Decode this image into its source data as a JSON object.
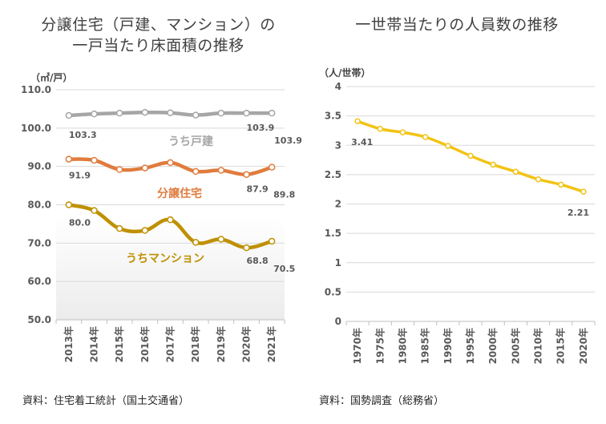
{
  "chart_data": [
    {
      "type": "line",
      "title": "分譲住宅（戸建、マンション）の一戸当たり床面積の推移",
      "title_lines": [
        "分譲住宅（戸建、マンション）の",
        "一戸当たり床面積の推移"
      ],
      "unit": "（㎡/戸）",
      "xlabel": "",
      "ylabel": "（㎡/戸）",
      "ylim": [
        50,
        110
      ],
      "y_ticks": [
        "110.0",
        "100.0",
        "90.0",
        "80.0",
        "70.0",
        "60.0",
        "50.0"
      ],
      "categories": [
        "2013年",
        "2014年",
        "2015年",
        "2016年",
        "2017年",
        "2018年",
        "2019年",
        "2020年",
        "2021年"
      ],
      "series": [
        {
          "name": "うち戸建",
          "color": "#a6a6a6",
          "values": [
            103.3,
            103.7,
            103.9,
            104.1,
            104.0,
            103.4,
            103.9,
            103.9,
            103.9
          ],
          "labels": [
            {
              "index": 0,
              "text": "103.3"
            },
            {
              "index": 7,
              "text": "103.9"
            },
            {
              "index": 8,
              "text": "103.9"
            }
          ]
        },
        {
          "name": "分譲住宅",
          "color": "#e07c3e",
          "values": [
            91.9,
            91.6,
            89.2,
            89.6,
            91.0,
            88.7,
            89.0,
            87.9,
            89.8
          ],
          "labels": [
            {
              "index": 0,
              "text": "91.9"
            },
            {
              "index": 7,
              "text": "87.9"
            },
            {
              "index": 8,
              "text": "89.8"
            }
          ]
        },
        {
          "name": "うちマンション",
          "color": "#bf9000",
          "values": [
            80.0,
            78.5,
            73.8,
            73.3,
            76.1,
            70.2,
            71.0,
            68.8,
            70.5
          ],
          "labels": [
            {
              "index": 0,
              "text": "80.0"
            },
            {
              "index": 7,
              "text": "68.8"
            },
            {
              "index": 8,
              "text": "70.5"
            }
          ]
        }
      ],
      "source": "資料：住宅着工統計（国土交通省）"
    },
    {
      "type": "line",
      "title": "一世帯当たりの人員数の推移",
      "title_lines": [
        "一世帯当たりの人員数の推移"
      ],
      "unit": "（人/世帯）",
      "xlabel": "",
      "ylabel": "（人/世帯）",
      "ylim": [
        0,
        4
      ],
      "y_ticks": [
        "4",
        "3.5",
        "3",
        "2.5",
        "2",
        "1.5",
        "1",
        "0.5",
        "0"
      ],
      "categories": [
        "1970年",
        "1975年",
        "1980年",
        "1985年",
        "1990年",
        "1995年",
        "2000年",
        "2005年",
        "2010年",
        "2015年",
        "2020年"
      ],
      "series": [
        {
          "name": "人員数",
          "color": "#f2c314",
          "values": [
            3.41,
            3.28,
            3.22,
            3.14,
            2.99,
            2.82,
            2.67,
            2.55,
            2.42,
            2.33,
            2.21
          ],
          "labels": [
            {
              "index": 0,
              "text": "3.41"
            },
            {
              "index": 10,
              "text": "2.21"
            }
          ]
        }
      ],
      "source": "資料：国勢調査（総務省）"
    }
  ]
}
